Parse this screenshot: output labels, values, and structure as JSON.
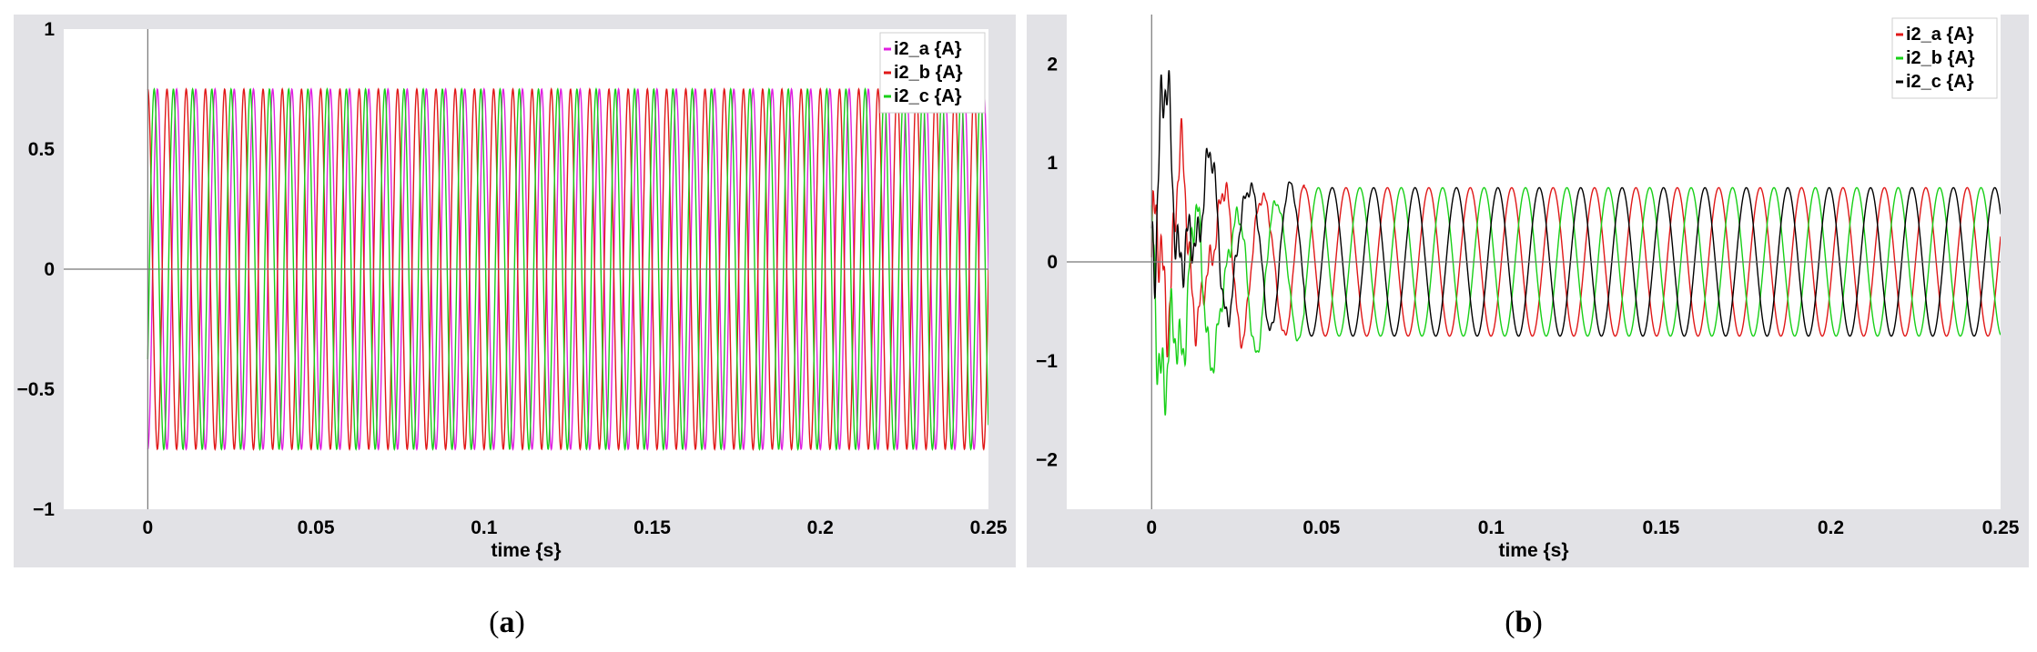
{
  "chart_data": [
    {
      "type": "line",
      "caption": "(a)",
      "caption_letter": "a",
      "xlabel": "time {s}",
      "ylabel": "",
      "xlim": [
        -0.025,
        0.25
      ],
      "ylim": [
        -1,
        1
      ],
      "x_ticks": [
        "0",
        "0.05",
        "0.1",
        "0.15",
        "0.2",
        "0.25"
      ],
      "y_ticks": [
        "1",
        "0.5",
        "0",
        "−0.5",
        "−1"
      ],
      "grid": false,
      "legend_position": "top-right",
      "series": [
        {
          "name": "i2_a {A}",
          "color": "#e020e0",
          "amplitude": 0.75,
          "frequency_hz": 175,
          "phase_deg": -90
        },
        {
          "name": "i2_b {A}",
          "color": "#e01818",
          "amplitude": 0.75,
          "frequency_hz": 175,
          "phase_deg": 90
        },
        {
          "name": "i2_c {A}",
          "color": "#18d018",
          "amplitude": 0.75,
          "frequency_hz": 175,
          "phase_deg": -30
        }
      ]
    },
    {
      "type": "line",
      "caption": "(b)",
      "caption_letter": "b",
      "xlabel": "time {s}",
      "ylabel": "",
      "xlim": [
        -0.025,
        0.25
      ],
      "ylim": [
        -2.5,
        2.5
      ],
      "x_ticks": [
        "0",
        "0.05",
        "0.1",
        "0.15",
        "0.2",
        "0.25"
      ],
      "y_ticks": [
        "2",
        "1",
        "0",
        "−1",
        "−2"
      ],
      "grid": false,
      "legend_position": "top-right",
      "series": [
        {
          "name": "i2_a {A}",
          "color": "#e01818",
          "amplitude": 0.75,
          "frequency_hz": 82,
          "phase_deg": 200,
          "transient_end_s": 0.045
        },
        {
          "name": "i2_b {A}",
          "color": "#18d018",
          "amplitude": 0.75,
          "frequency_hz": 82,
          "phase_deg": 80,
          "transient_end_s": 0.045
        },
        {
          "name": "i2_c {A}",
          "color": "#000000",
          "amplitude": 0.75,
          "frequency_hz": 82,
          "phase_deg": -40,
          "transient_end_s": 0.045
        }
      ]
    }
  ]
}
